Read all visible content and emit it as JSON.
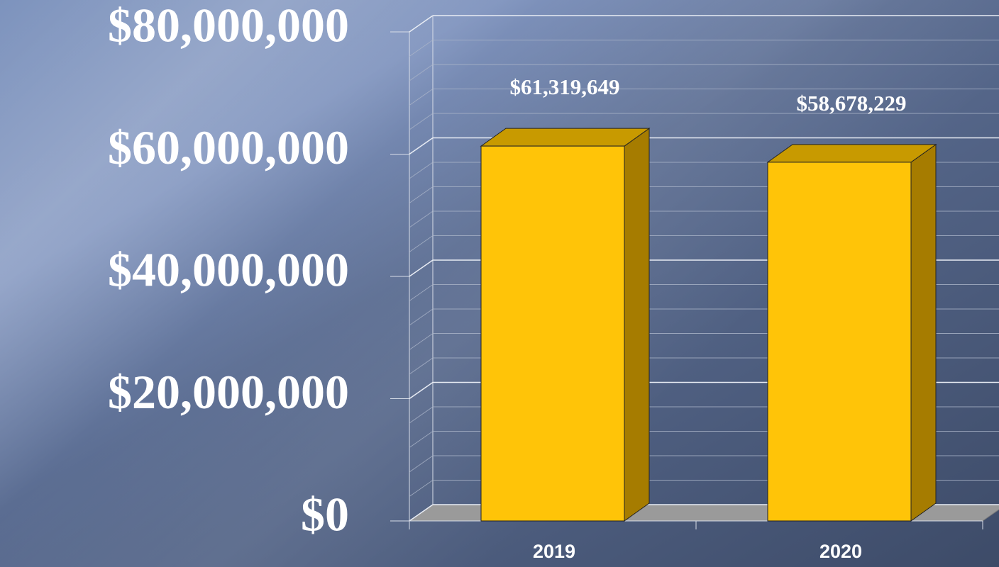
{
  "chart_data": {
    "type": "bar3d",
    "categories": [
      "2019",
      "2020"
    ],
    "values": [
      61319649,
      58678229
    ],
    "value_labels": [
      "$61,319,649",
      "$58,678,229"
    ],
    "color": "#ffc408",
    "ylim": [
      0,
      80000000
    ],
    "yticks": [
      {
        "value": 0,
        "label": "$0"
      },
      {
        "value": 20000000,
        "label": "$20,000,000"
      },
      {
        "value": 40000000,
        "label": "$40,000,000"
      },
      {
        "value": 60000000,
        "label": "$60,000,000"
      },
      {
        "value": 80000000,
        "label": "$80,000,000"
      }
    ],
    "grid": true,
    "minor_grid_divisions": 5
  }
}
